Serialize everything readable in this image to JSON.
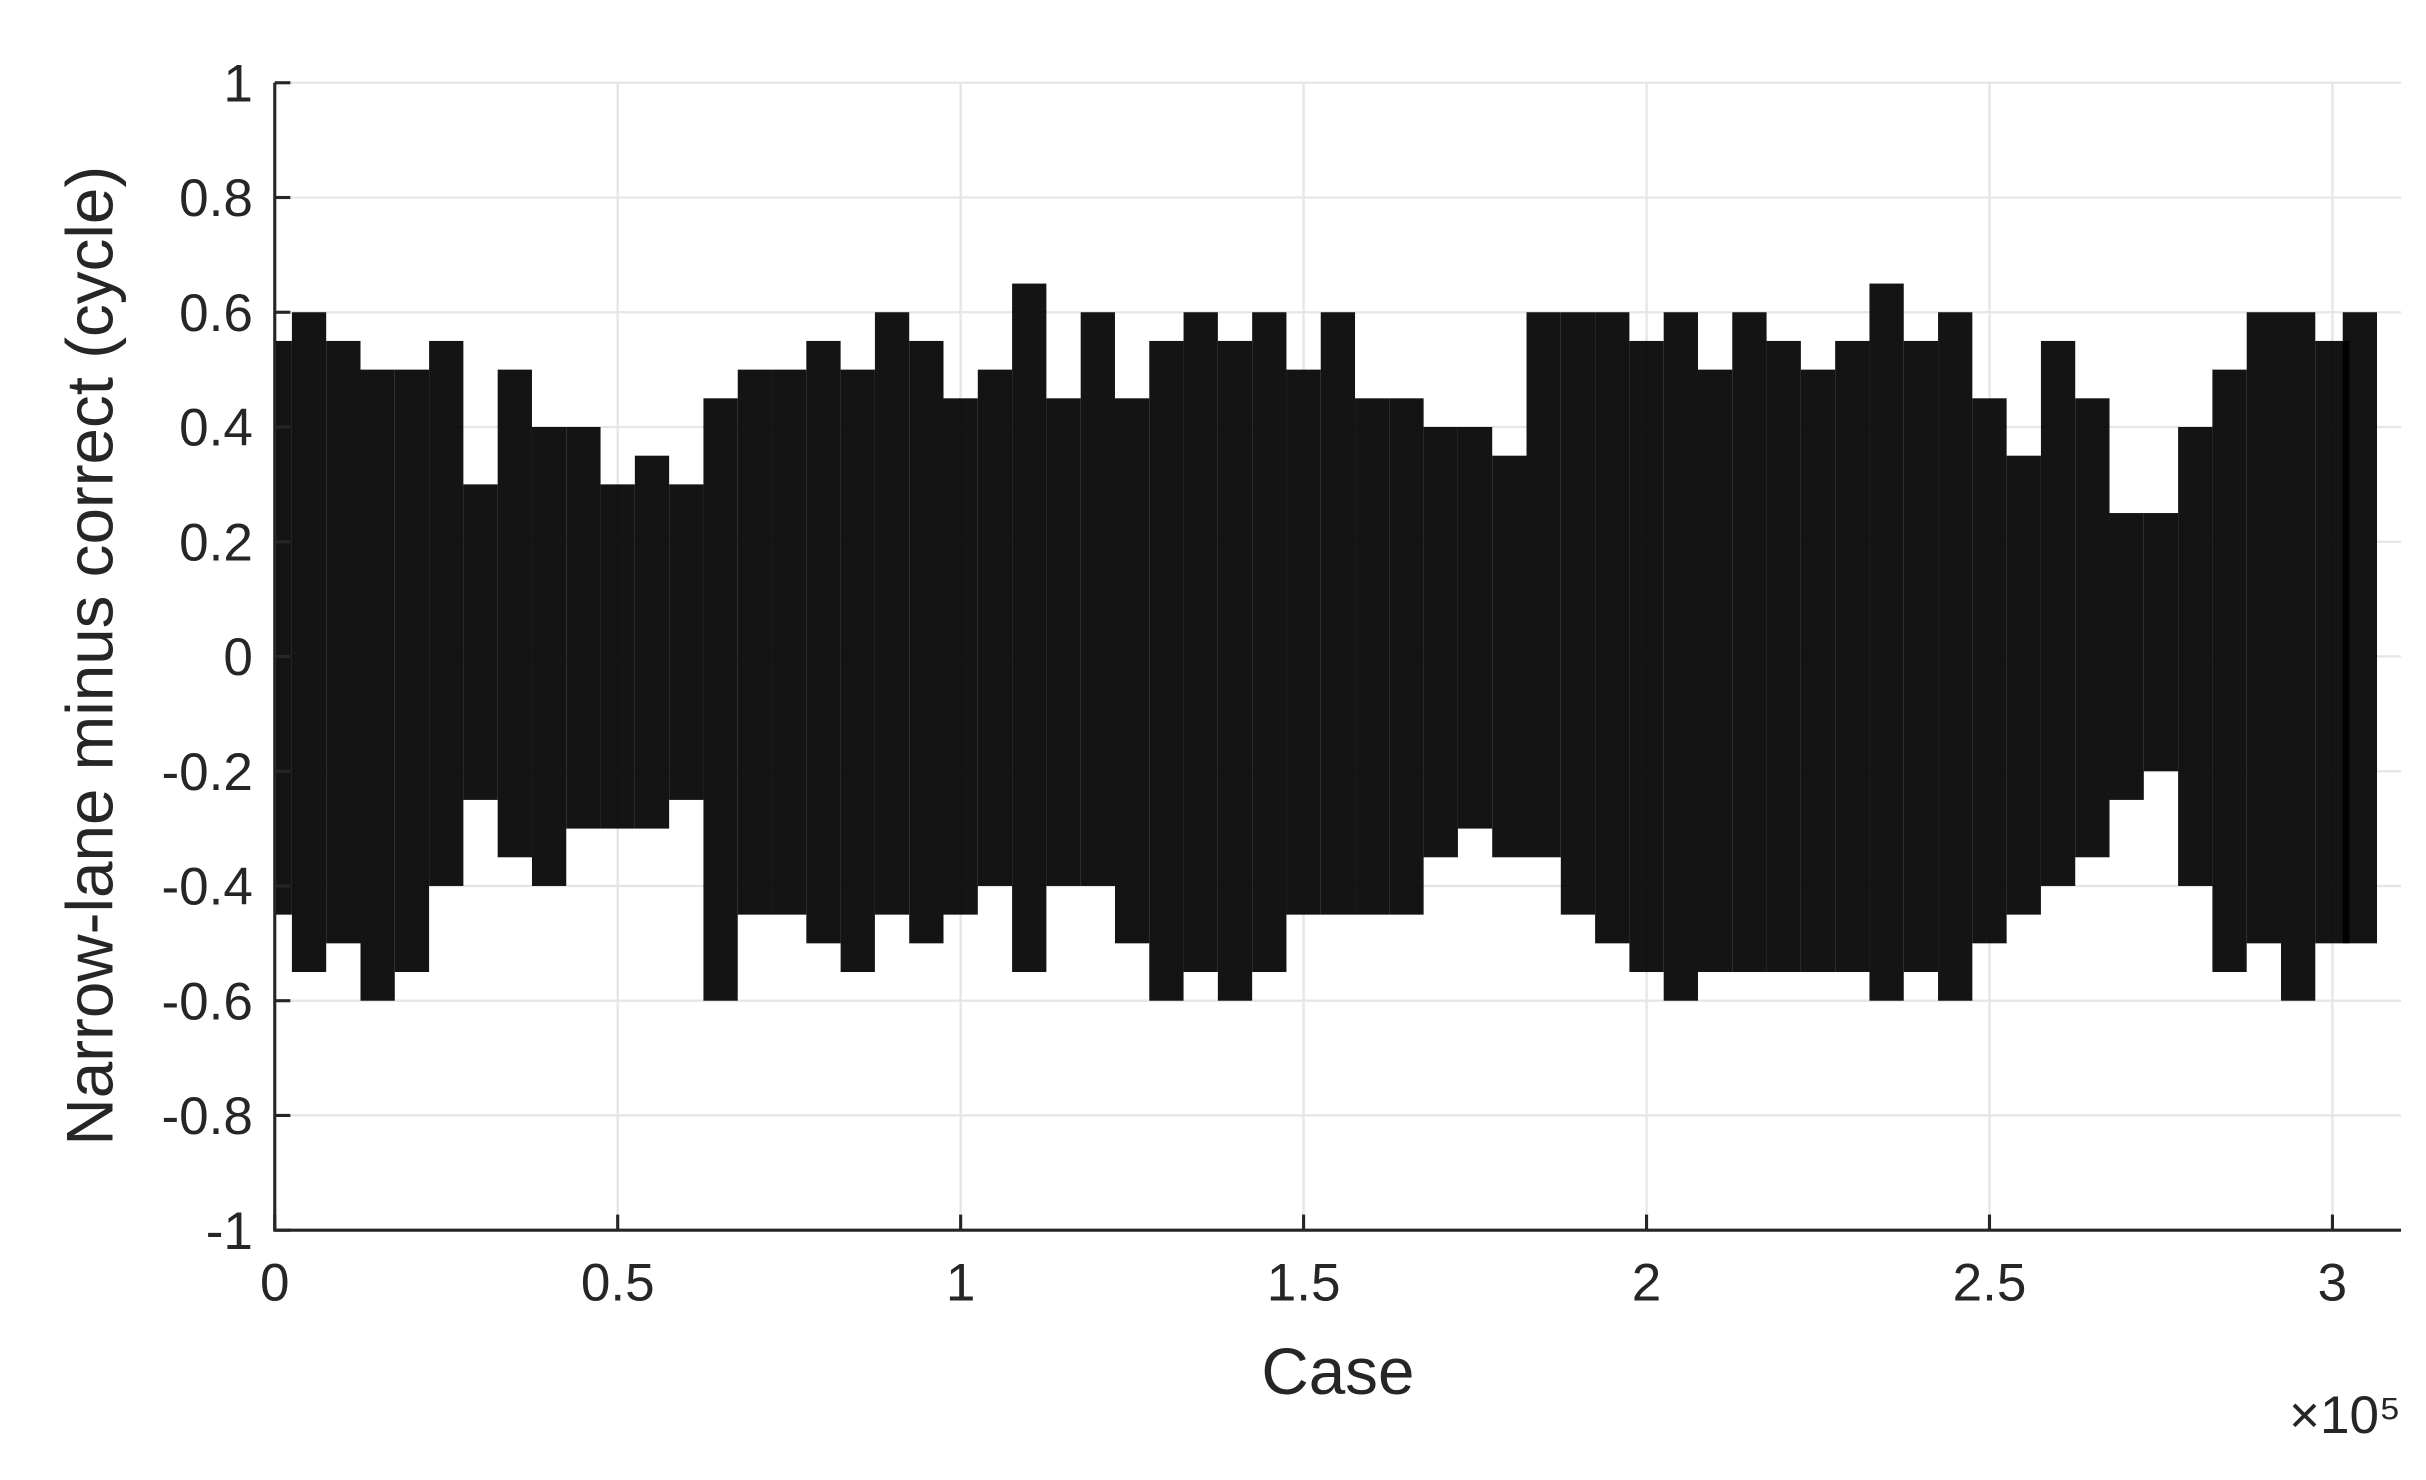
{
  "chart_data": {
    "type": "range",
    "x_label": "Case",
    "y_label": "Narrow-lane minus correct (cycle)",
    "x_multiplier": "×10⁵",
    "color": "#000000",
    "grid": true,
    "xlim": [
      0,
      310000
    ],
    "ylim": [
      -1,
      1
    ],
    "xticks": [
      0,
      {
        "value": 50000,
        "label": "0.5"
      },
      {
        "value": 100000,
        "label": "1"
      },
      {
        "value": 150000,
        "label": "1.5"
      },
      {
        "value": 200000,
        "label": "2"
      },
      {
        "value": 250000,
        "label": "2.5"
      },
      {
        "value": 300000,
        "label": "3"
      }
    ],
    "yticks": [
      -1,
      -0.8,
      -0.6,
      -0.4,
      -0.2,
      0,
      0.2,
      0.4,
      0.6,
      0.8,
      1
    ],
    "x": [
      0,
      5000,
      10000,
      15000,
      20000,
      25000,
      30000,
      35000,
      40000,
      45000,
      50000,
      55000,
      60000,
      65000,
      70000,
      75000,
      80000,
      85000,
      90000,
      95000,
      100000,
      105000,
      110000,
      115000,
      120000,
      125000,
      130000,
      135000,
      140000,
      145000,
      150000,
      155000,
      160000,
      165000,
      170000,
      175000,
      180000,
      185000,
      190000,
      195000,
      200000,
      205000,
      210000,
      215000,
      220000,
      225000,
      230000,
      235000,
      240000,
      245000,
      250000,
      255000,
      260000,
      265000,
      270000,
      275000,
      280000,
      285000,
      290000,
      295000,
      300000,
      304000
    ],
    "high": [
      0.55,
      0.6,
      0.55,
      0.5,
      0.5,
      0.55,
      0.3,
      0.5,
      0.4,
      0.4,
      0.3,
      0.35,
      0.3,
      0.45,
      0.5,
      0.5,
      0.55,
      0.5,
      0.6,
      0.55,
      0.45,
      0.5,
      0.65,
      0.45,
      0.6,
      0.45,
      0.55,
      0.6,
      0.55,
      0.6,
      0.5,
      0.6,
      0.45,
      0.45,
      0.4,
      0.4,
      0.35,
      0.6,
      0.6,
      0.6,
      0.55,
      0.6,
      0.5,
      0.6,
      0.55,
      0.5,
      0.55,
      0.65,
      0.55,
      0.6,
      0.45,
      0.35,
      0.55,
      0.45,
      0.25,
      0.25,
      0.4,
      0.5,
      0.6,
      0.6,
      0.55,
      0.6
    ],
    "low": [
      -0.45,
      -0.55,
      -0.5,
      -0.6,
      -0.55,
      -0.4,
      -0.25,
      -0.35,
      -0.4,
      -0.3,
      -0.3,
      -0.3,
      -0.25,
      -0.6,
      -0.45,
      -0.45,
      -0.5,
      -0.55,
      -0.45,
      -0.5,
      -0.45,
      -0.4,
      -0.55,
      -0.4,
      -0.4,
      -0.5,
      -0.6,
      -0.55,
      -0.6,
      -0.55,
      -0.45,
      -0.45,
      -0.45,
      -0.45,
      -0.35,
      -0.3,
      -0.35,
      -0.35,
      -0.45,
      -0.5,
      -0.55,
      -0.6,
      -0.55,
      -0.55,
      -0.55,
      -0.55,
      -0.55,
      -0.6,
      -0.55,
      -0.6,
      -0.5,
      -0.45,
      -0.4,
      -0.35,
      -0.25,
      -0.2,
      -0.4,
      -0.55,
      -0.5,
      -0.6,
      -0.5,
      -0.5
    ]
  }
}
